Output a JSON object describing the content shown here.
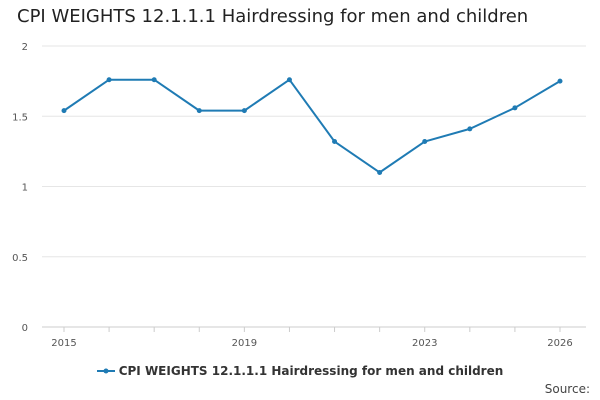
{
  "chart_data": {
    "type": "line",
    "title": "CPI WEIGHTS 12.1.1.1 Hairdressing for men and children",
    "xlabel": "",
    "ylabel": "",
    "x": [
      2015,
      2016,
      2017,
      2018,
      2019,
      2020,
      2021,
      2022,
      2023,
      2024,
      2025,
      2026
    ],
    "x_ticks": [
      2015,
      2019,
      2023,
      2026
    ],
    "xlim": [
      2015,
      2026
    ],
    "y_ticks": [
      0,
      0.5,
      1,
      1.5,
      2
    ],
    "ylim": [
      0,
      2
    ],
    "grid": "horizontal",
    "legend_position": "bottom",
    "series": [
      {
        "name": "CPI WEIGHTS 12.1.1.1 Hairdressing for men and children",
        "color": "#1f7bb4",
        "values": [
          1.54,
          1.76,
          1.76,
          1.54,
          1.54,
          1.76,
          1.32,
          1.1,
          1.32,
          1.41,
          1.56,
          1.75
        ]
      }
    ]
  },
  "footer": {
    "source_label": "Source:"
  }
}
